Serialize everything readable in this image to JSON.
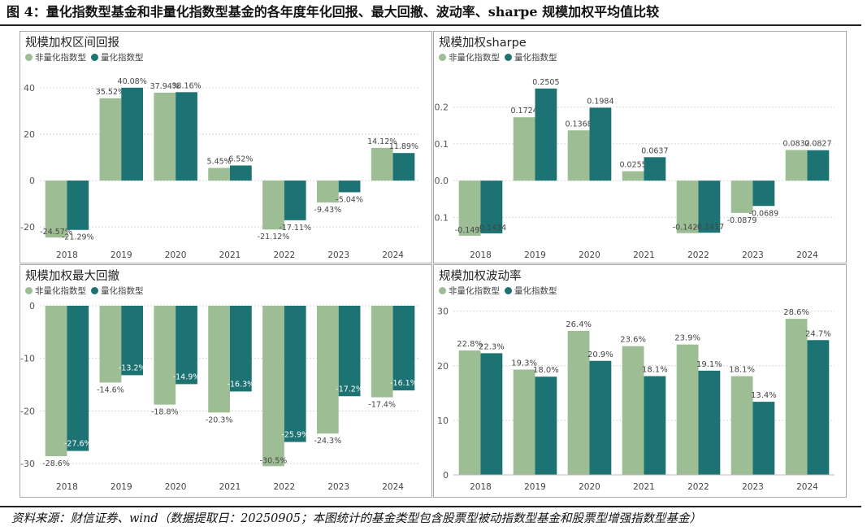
{
  "figure": {
    "title": "图 4：量化指数型基金和非量化指数型基金的各年度年化回报、最大回撤、波动率、sharpe 规模加权平均值比较",
    "source": "资料来源：财信证券、wind（数据提取日：20250905；本图统计的基金类型包含股票型被动指数型基金和股票型增强指数型基金）"
  },
  "colors": {
    "non_quant": "#9dbe94",
    "quant": "#1d7373"
  },
  "legend": [
    "非量化指数型",
    "量化指数型"
  ],
  "chart_data": [
    {
      "id": "return",
      "type": "bar",
      "title": "规模加权区间回报",
      "categories": [
        "2018",
        "2019",
        "2020",
        "2021",
        "2022",
        "2023",
        "2024"
      ],
      "series": [
        {
          "name": "非量化指数型",
          "values": [
            -24.57,
            35.52,
            37.94,
            5.45,
            -21.12,
            -9.43,
            14.12
          ],
          "labels": [
            "-24.57%",
            "35.52%",
            "37.94%",
            "5.45%",
            "-21.12%",
            "-9.43%",
            "14.12%"
          ]
        },
        {
          "name": "量化指数型",
          "values": [
            -21.29,
            40.08,
            38.16,
            6.52,
            -17.11,
            -5.04,
            11.89
          ],
          "labels": [
            "-21.29%",
            "40.08%",
            "38.16%",
            "6.52%",
            "-17.11%",
            "-5.04%",
            "11.89%"
          ]
        }
      ],
      "ylim": [
        -27,
        46
      ],
      "yticks": [
        -20,
        0,
        20,
        40
      ],
      "ytick_labels": [
        "-20",
        "0",
        "20",
        "40"
      ],
      "grid": true
    },
    {
      "id": "sharpe",
      "type": "bar",
      "title": "规模加权sharpe",
      "categories": [
        "2018",
        "2019",
        "2020",
        "2021",
        "2022",
        "2023",
        "2024"
      ],
      "series": [
        {
          "name": "非量化指数型",
          "values": [
            -0.1498,
            0.1724,
            0.1368,
            0.0255,
            -0.1428,
            -0.0879,
            0.0832
          ],
          "labels": [
            "-0.1498",
            "0.1724",
            "0.1368",
            "0.0255",
            "-0.1428",
            "-0.0879",
            "0.0832"
          ]
        },
        {
          "name": "量化指数型",
          "values": [
            -0.1434,
            0.2505,
            0.1984,
            0.0637,
            -0.1417,
            -0.0689,
            0.0827
          ],
          "labels": [
            "-0.1434",
            "0.2505",
            "0.1984",
            "0.0637",
            "-0.1417",
            "-0.0689",
            "0.0827"
          ]
        }
      ],
      "ylim": [
        -0.17,
        0.29
      ],
      "yticks": [
        -0.1,
        0.0,
        0.1,
        0.2
      ],
      "ytick_labels": [
        "-0.1",
        "0.0",
        "0.1",
        "0.2"
      ],
      "grid": true
    },
    {
      "id": "drawdown",
      "type": "bar",
      "title": "规模加权最大回撤",
      "categories": [
        "2018",
        "2019",
        "2020",
        "2021",
        "2022",
        "2023",
        "2024"
      ],
      "series": [
        {
          "name": "非量化指数型",
          "values": [
            -28.6,
            -14.6,
            -18.8,
            -20.3,
            -30.5,
            -24.3,
            -17.4
          ],
          "labels": [
            "-28.6%",
            "-14.6%",
            "-18.8%",
            "-20.3%",
            "-30.5%",
            "-24.3%",
            "-17.4%"
          ]
        },
        {
          "name": "量化指数型",
          "values": [
            -27.6,
            -13.2,
            -14.9,
            -16.3,
            -25.9,
            -17.2,
            -16.1
          ],
          "labels": [
            "-27.6%",
            "-13.2%",
            "-14.9%",
            "-16.3%",
            "-25.9%",
            "-17.2%",
            "-16.1%"
          ]
        }
      ],
      "ylim": [
        -32,
        0
      ],
      "yticks": [
        -30,
        -20,
        -10,
        0
      ],
      "ytick_labels": [
        "-30",
        "-20",
        "-10",
        "0"
      ],
      "grid": true
    },
    {
      "id": "volatility",
      "type": "bar",
      "title": "规模加权波动率",
      "categories": [
        "2018",
        "2019",
        "2020",
        "2021",
        "2022",
        "2023",
        "2024"
      ],
      "series": [
        {
          "name": "非量化指数型",
          "values": [
            22.8,
            19.3,
            26.4,
            23.6,
            23.9,
            18.1,
            28.6
          ],
          "labels": [
            "22.8%",
            "19.3%",
            "26.4%",
            "23.6%",
            "23.9%",
            "18.1%",
            "28.6%"
          ]
        },
        {
          "name": "量化指数型",
          "values": [
            22.3,
            18.0,
            20.9,
            18.1,
            19.1,
            13.4,
            24.7
          ],
          "labels": [
            "22.3%",
            "18.0%",
            "20.9%",
            "18.1%",
            "19.1%",
            "13.4%",
            "24.7%"
          ]
        }
      ],
      "ylim": [
        0,
        31
      ],
      "yticks": [
        0,
        10,
        20,
        30
      ],
      "ytick_labels": [
        "0",
        "10",
        "20",
        "30"
      ],
      "grid": true
    }
  ]
}
